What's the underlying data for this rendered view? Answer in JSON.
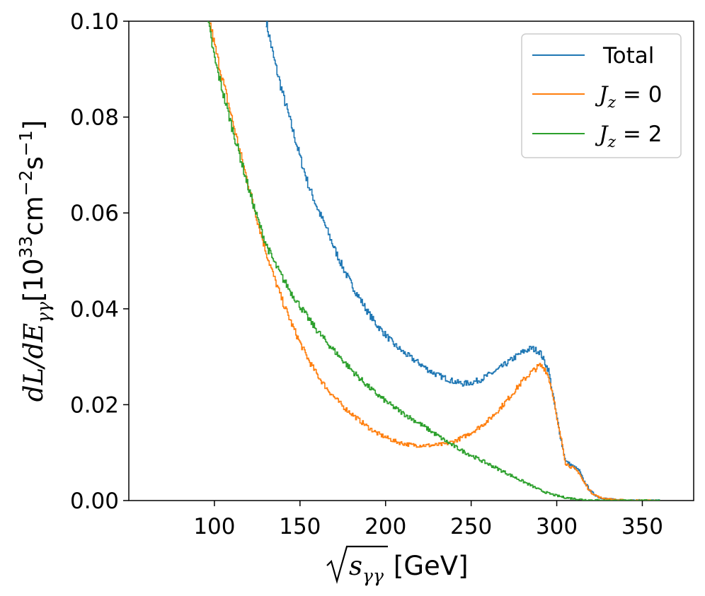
{
  "chart_data": {
    "type": "line",
    "title": "",
    "xlabel": "√ sγγ [GeV]",
    "xlabel_parts": {
      "radicand": "s",
      "subscript": "γγ",
      "unit": "[GeV]"
    },
    "ylabel": "dL/dEγγ[10³³cm⁻²s⁻¹]",
    "ylabel_parts": {
      "lhs": "dL/dE",
      "subscript": "γγ",
      "open": "[10",
      "exp1": "33",
      "mid": "cm",
      "exp2": "−2",
      "s": "s",
      "exp3": "−1",
      "close": "]"
    },
    "xlim": [
      50,
      380
    ],
    "ylim": [
      0.0,
      0.1
    ],
    "xticks": [
      100,
      150,
      200,
      250,
      300,
      350
    ],
    "xtick_labels": [
      "100",
      "150",
      "200",
      "250",
      "300",
      "350"
    ],
    "yticks": [
      0.0,
      0.02,
      0.04,
      0.06,
      0.08,
      0.1
    ],
    "ytick_labels": [
      "0.00",
      "0.02",
      "0.04",
      "0.06",
      "0.08",
      "0.10"
    ],
    "legend_position": "top-right",
    "series": [
      {
        "name": "Total",
        "legend_parts": {
          "text": "Total"
        },
        "color": "#1f77b4",
        "x": [
          130,
          135,
          140,
          145,
          150,
          155,
          160,
          165,
          170,
          175,
          180,
          185,
          190,
          195,
          200,
          205,
          210,
          215,
          220,
          225,
          230,
          235,
          240,
          245,
          250,
          255,
          260,
          265,
          270,
          275,
          280,
          285,
          290,
          295,
          300,
          303,
          305,
          310,
          313,
          315,
          318,
          320,
          323,
          325,
          330,
          335,
          340,
          345,
          350,
          355,
          360
        ],
        "y": [
          0.1,
          0.0915,
          0.0845,
          0.078,
          0.0715,
          0.0655,
          0.061,
          0.057,
          0.0525,
          0.0485,
          0.045,
          0.042,
          0.039,
          0.0365,
          0.0345,
          0.0325,
          0.031,
          0.0297,
          0.0285,
          0.0272,
          0.0262,
          0.0255,
          0.0248,
          0.0244,
          0.0246,
          0.0252,
          0.0262,
          0.0272,
          0.0285,
          0.0298,
          0.031,
          0.0318,
          0.031,
          0.0272,
          0.017,
          0.0115,
          0.0082,
          0.007,
          0.0062,
          0.0045,
          0.0028,
          0.0018,
          0.001,
          0.0006,
          0.0003,
          0.00012,
          5e-05,
          2e-05,
          1e-05,
          0.0,
          0.0
        ]
      },
      {
        "name": "J_z = 0",
        "legend_parts": {
          "var": "J",
          "sub": "z",
          "rest": " = 0"
        },
        "color": "#ff7f0e",
        "x": [
          97,
          100,
          105,
          110,
          115,
          120,
          125,
          130,
          135,
          140,
          145,
          150,
          155,
          160,
          165,
          170,
          175,
          180,
          185,
          190,
          195,
          200,
          205,
          210,
          215,
          220,
          225,
          230,
          235,
          240,
          245,
          250,
          255,
          260,
          265,
          270,
          275,
          280,
          285,
          290,
          293,
          295,
          298,
          300,
          303,
          305,
          310,
          313,
          315,
          318,
          320,
          323,
          325,
          330,
          335,
          340,
          345,
          350,
          355,
          360
        ],
        "y": [
          0.1,
          0.0948,
          0.0872,
          0.0798,
          0.0724,
          0.0654,
          0.0584,
          0.0518,
          0.0462,
          0.0412,
          0.0368,
          0.0328,
          0.0292,
          0.0262,
          0.0236,
          0.0215,
          0.0196,
          0.0181,
          0.0166,
          0.0152,
          0.014,
          0.0132,
          0.0124,
          0.0119,
          0.0116,
          0.0115,
          0.0115,
          0.0116,
          0.0118,
          0.0124,
          0.0132,
          0.0142,
          0.0154,
          0.0168,
          0.0186,
          0.0206,
          0.0228,
          0.025,
          0.0268,
          0.0282,
          0.0275,
          0.0258,
          0.0215,
          0.0165,
          0.0118,
          0.0078,
          0.0066,
          0.0058,
          0.0042,
          0.0026,
          0.0017,
          0.001,
          0.0006,
          0.0003,
          0.00012,
          5e-05,
          2e-05,
          1e-05,
          0.0,
          0.0
        ]
      },
      {
        "name": "J_z = 2",
        "legend_parts": {
          "var": "J",
          "sub": "z",
          "rest": " = 2"
        },
        "color": "#2ca02c",
        "x": [
          96,
          100,
          105,
          110,
          115,
          120,
          125,
          130,
          135,
          140,
          145,
          150,
          155,
          160,
          165,
          170,
          175,
          180,
          185,
          190,
          195,
          200,
          205,
          210,
          215,
          220,
          225,
          230,
          235,
          240,
          245,
          250,
          255,
          260,
          265,
          270,
          275,
          280,
          285,
          290,
          295,
          300,
          305,
          310,
          315,
          320,
          325,
          330,
          340,
          350,
          360
        ],
        "y": [
          0.1,
          0.092,
          0.0848,
          0.078,
          0.0715,
          0.0648,
          0.0588,
          0.0535,
          0.0495,
          0.0462,
          0.0432,
          0.0405,
          0.0378,
          0.0354,
          0.0332,
          0.0312,
          0.0292,
          0.0272,
          0.0254,
          0.0237,
          0.0221,
          0.0207,
          0.0194,
          0.0182,
          0.0171,
          0.016,
          0.0148,
          0.0136,
          0.0124,
          0.0113,
          0.0103,
          0.0094,
          0.0085,
          0.0076,
          0.0067,
          0.0058,
          0.0049,
          0.004,
          0.0031,
          0.0022,
          0.0015,
          0.001,
          0.0006,
          0.0004,
          0.0002,
          0.0001,
          5e-05,
          0.0,
          0.0,
          0.0,
          0.0
        ]
      }
    ]
  }
}
